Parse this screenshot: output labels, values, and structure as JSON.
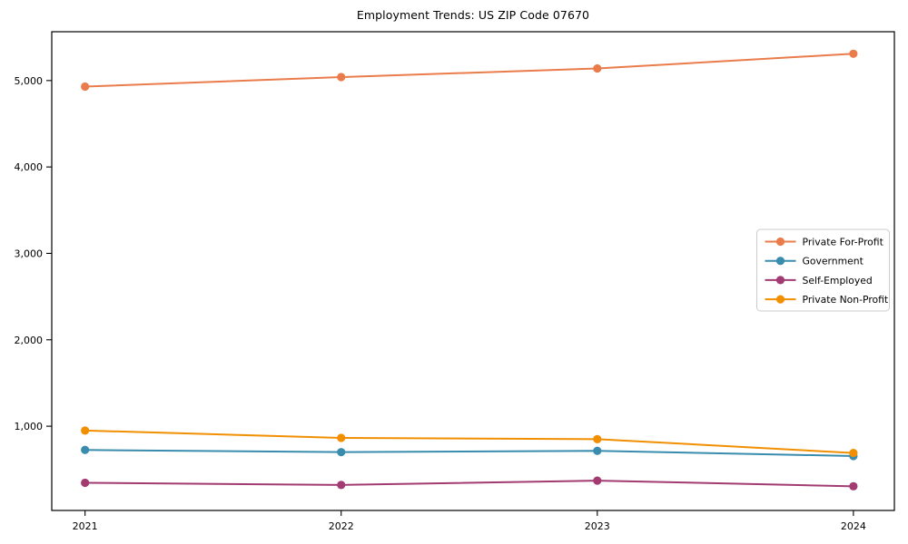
{
  "chart_data": {
    "type": "line",
    "title": "Employment Trends: US ZIP Code 07670",
    "xlabel": "",
    "ylabel": "",
    "categories": [
      2021,
      2022,
      2023,
      2024
    ],
    "series": [
      {
        "name": "Private For-Profit",
        "color": "#E97C4A",
        "values": [
          4930,
          5040,
          5140,
          5310
        ]
      },
      {
        "name": "Government",
        "color": "#3A8CAE",
        "values": [
          725,
          700,
          715,
          655
        ]
      },
      {
        "name": "Self-Employed",
        "color": "#A23B72",
        "values": [
          345,
          320,
          370,
          305
        ]
      },
      {
        "name": "Private Non-Profit",
        "color": "#F18F01",
        "values": [
          950,
          865,
          850,
          690
        ]
      }
    ],
    "xtick_labels": [
      "2021",
      "2022",
      "2023",
      "2024"
    ],
    "yticks": [
      1000,
      2000,
      3000,
      4000,
      5000
    ],
    "ytick_labels": [
      "1,000",
      "2,000",
      "3,000",
      "4,000",
      "5,000"
    ],
    "xlim": [
      2020.87,
      2024.16
    ],
    "ylim": [
      25,
      5565
    ],
    "grid": false,
    "legend_position": "center-right",
    "axis_color": "#000000",
    "background_color": "#ffffff",
    "marker": "circle",
    "marker_radius": 4.6,
    "line_width": 2
  }
}
